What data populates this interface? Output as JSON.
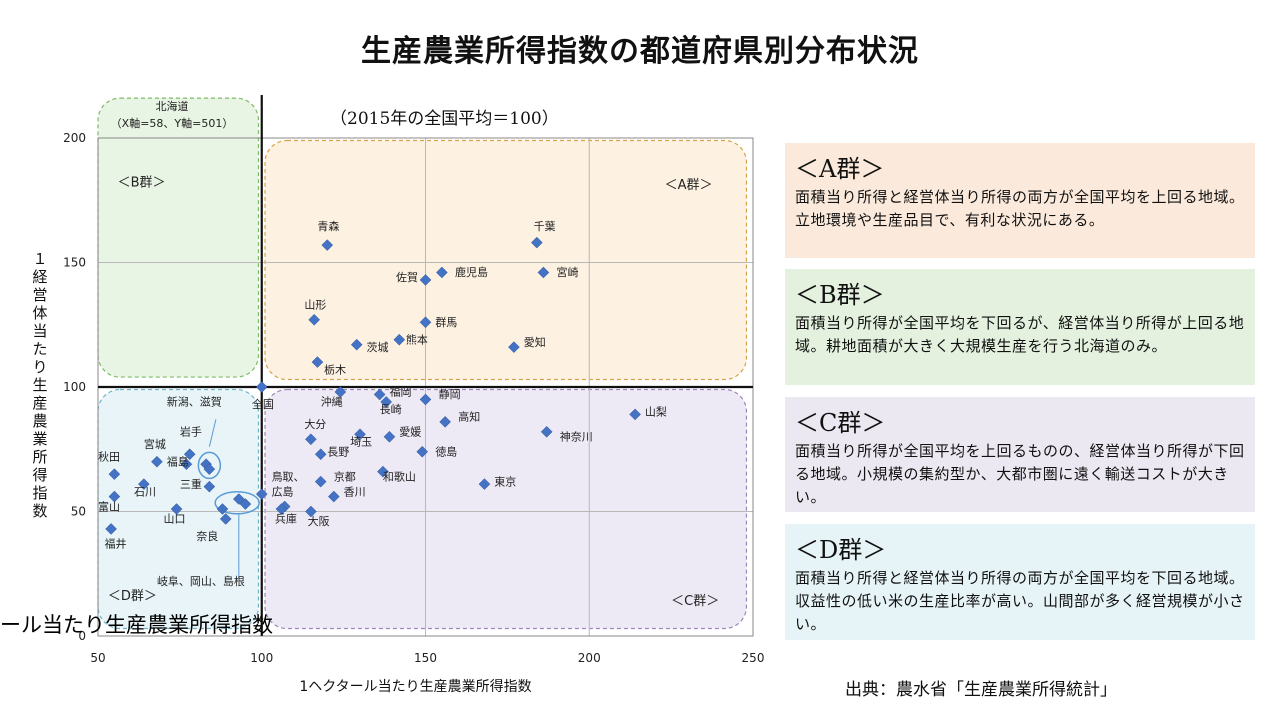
{
  "title": "生産農業所得指数の都道府県別分布状況",
  "subtitle": "（2015年の全国平均＝100）",
  "source": "出典：農水省「生産農業所得統計」",
  "overlap_text": "ール当たり生産農業所得指数",
  "chart_data": {
    "type": "scatter",
    "xlabel": "1ヘクタール当たり生産農業所得指数",
    "ylabel": "１経営体当たり生産農業所得指数",
    "xlim": [
      50,
      250
    ],
    "ylim": [
      0,
      200
    ],
    "xticks": [
      "50",
      "100",
      "150",
      "200",
      "250"
    ],
    "yticks": [
      "0",
      "50",
      "100",
      "150",
      "200"
    ],
    "grid": true,
    "reference_lines": {
      "x": 100,
      "y": 100
    },
    "marker_color": "#4472c4",
    "points": [
      {
        "label": "青森",
        "x": 120,
        "y": 157
      },
      {
        "label": "千葉",
        "x": 184,
        "y": 158
      },
      {
        "label": "宮崎",
        "x": 186,
        "y": 146
      },
      {
        "label": "鹿児島",
        "x": 155,
        "y": 146
      },
      {
        "label": "佐賀",
        "x": 150,
        "y": 143
      },
      {
        "label": "山形",
        "x": 116,
        "y": 127
      },
      {
        "label": "群馬",
        "x": 150,
        "y": 126
      },
      {
        "label": "熊本",
        "x": 142,
        "y": 119
      },
      {
        "label": "茨城",
        "x": 129,
        "y": 117
      },
      {
        "label": "愛知",
        "x": 177,
        "y": 116
      },
      {
        "label": "栃木",
        "x": 117,
        "y": 110
      },
      {
        "label": "全国",
        "x": 100,
        "y": 100
      },
      {
        "label": "沖縄",
        "x": 124,
        "y": 98
      },
      {
        "label": "福岡",
        "x": 136,
        "y": 97
      },
      {
        "label": "長崎",
        "x": 138,
        "y": 94
      },
      {
        "label": "静岡",
        "x": 150,
        "y": 95
      },
      {
        "label": "山梨",
        "x": 214,
        "y": 89
      },
      {
        "label": "高知",
        "x": 156,
        "y": 86
      },
      {
        "label": "神奈川",
        "x": 187,
        "y": 82
      },
      {
        "label": "大分",
        "x": 115,
        "y": 79
      },
      {
        "label": "埼玉",
        "x": 130,
        "y": 81
      },
      {
        "label": "愛媛",
        "x": 139,
        "y": 80
      },
      {
        "label": "長野",
        "x": 118,
        "y": 73
      },
      {
        "label": "徳島",
        "x": 149,
        "y": 74
      },
      {
        "label": "和歌山",
        "x": 137,
        "y": 66
      },
      {
        "label": "京都",
        "x": 118,
        "y": 62
      },
      {
        "label": "東京",
        "x": 168,
        "y": 61
      },
      {
        "label": "香川",
        "x": 122,
        "y": 56
      },
      {
        "label": "鳥取",
        "x": 100,
        "y": 57
      },
      {
        "label": "広島",
        "x": 107,
        "y": 52
      },
      {
        "label": "兵庫",
        "x": 106,
        "y": 51
      },
      {
        "label": "大阪",
        "x": 115,
        "y": 50
      },
      {
        "label": "岩手",
        "x": 78,
        "y": 73
      },
      {
        "label": "宮城",
        "x": 68,
        "y": 70
      },
      {
        "label": "福島",
        "x": 77,
        "y": 69
      },
      {
        "label": "新潟",
        "x": 83,
        "y": 69
      },
      {
        "label": "滋賀",
        "x": 84,
        "y": 67
      },
      {
        "label": "三重",
        "x": 84,
        "y": 60
      },
      {
        "label": "秋田",
        "x": 55,
        "y": 65
      },
      {
        "label": "石川",
        "x": 64,
        "y": 61
      },
      {
        "label": "富山",
        "x": 55,
        "y": 56
      },
      {
        "label": "山口",
        "x": 74,
        "y": 51
      },
      {
        "label": "岐阜",
        "x": 88,
        "y": 51
      },
      {
        "label": "岡山",
        "x": 93,
        "y": 55
      },
      {
        "label": "島根",
        "x": 95,
        "y": 53
      },
      {
        "label": "奈良",
        "x": 89,
        "y": 47
      },
      {
        "label": "福井",
        "x": 54,
        "y": 43
      }
    ],
    "chart_labels": [
      {
        "text": "青森",
        "x": 117,
        "y": 163
      },
      {
        "text": "千葉",
        "x": 183,
        "y": 163
      },
      {
        "text": "宮崎",
        "x": 190,
        "y": 144.5
      },
      {
        "text": "鹿児島",
        "x": 159,
        "y": 144.5
      },
      {
        "text": "佐賀",
        "x": 141,
        "y": 142.5
      },
      {
        "text": "山形",
        "x": 113,
        "y": 131.5
      },
      {
        "text": "群馬",
        "x": 153,
        "y": 124.5
      },
      {
        "text": "熊本",
        "x": 144,
        "y": 117.5
      },
      {
        "text": "茨城",
        "x": 132,
        "y": 114.5
      },
      {
        "text": "愛知",
        "x": 180,
        "y": 116.5
      },
      {
        "text": "栃木",
        "x": 119,
        "y": 105.5
      },
      {
        "text": "全国",
        "x": 97,
        "y": 91.5
      },
      {
        "text": "沖縄",
        "x": 118,
        "y": 92.5
      },
      {
        "text": "福岡",
        "x": 139,
        "y": 96.5
      },
      {
        "text": "長崎",
        "x": 136,
        "y": 89.5
      },
      {
        "text": "静岡",
        "x": 154,
        "y": 95.5
      },
      {
        "text": "山梨",
        "x": 217,
        "y": 88.5
      },
      {
        "text": "高知",
        "x": 160,
        "y": 86.5
      },
      {
        "text": "神奈川",
        "x": 191,
        "y": 78.5
      },
      {
        "text": "大分",
        "x": 113,
        "y": 83.5
      },
      {
        "text": "埼玉",
        "x": 127,
        "y": 76.5
      },
      {
        "text": "愛媛",
        "x": 142,
        "y": 80.5
      },
      {
        "text": "長野",
        "x": 120,
        "y": 72.5
      },
      {
        "text": "徳島",
        "x": 153,
        "y": 72.5
      },
      {
        "text": "和歌山",
        "x": 137,
        "y": 62.5
      },
      {
        "text": "京都",
        "x": 122,
        "y": 62.5
      },
      {
        "text": "東京",
        "x": 171,
        "y": 60.5
      },
      {
        "text": "香川",
        "x": 125,
        "y": 56.5
      },
      {
        "text": "鳥取、",
        "x": 103,
        "y": 62.5
      },
      {
        "text": "広島",
        "x": 103,
        "y": 56.5
      },
      {
        "text": "兵庫",
        "x": 104,
        "y": 45.5
      },
      {
        "text": "大阪",
        "x": 114,
        "y": 44.5
      },
      {
        "text": "新潟、滋賀",
        "x": 71,
        "y": 92.5
      },
      {
        "text": "岩手",
        "x": 75,
        "y": 80.5
      },
      {
        "text": "宮城",
        "x": 64,
        "y": 75.5
      },
      {
        "text": "福島",
        "x": 71,
        "y": 68.5
      },
      {
        "text": "三重",
        "x": 75,
        "y": 59.5
      },
      {
        "text": "秋田",
        "x": 50,
        "y": 70.5
      },
      {
        "text": "石川",
        "x": 61,
        "y": 56.5
      },
      {
        "text": "富山",
        "x": 50,
        "y": 50.5
      },
      {
        "text": "山口",
        "x": 70,
        "y": 45.5
      },
      {
        "text": "奈良",
        "x": 80,
        "y": 38.5
      },
      {
        "text": "福井",
        "x": 52,
        "y": 35.5
      },
      {
        "text": "岐阜、岡山、島根",
        "x": 68,
        "y": 20.5
      }
    ],
    "group_labels": [
      {
        "text": "＜A群＞",
        "x": 223,
        "y": 179.5
      },
      {
        "text": "＜B群＞",
        "x": 56,
        "y": 180.5
      },
      {
        "text": "＜C群＞",
        "x": 225,
        "y": 12.5
      },
      {
        "text": "＜D群＞",
        "x": 53,
        "y": 14.5
      }
    ],
    "regions": [
      {
        "name": "A群",
        "x0": 101,
        "x1": 248,
        "y0": 103,
        "y1": 199,
        "fill": "#fdf1e2",
        "stroke": "#d9a24a"
      },
      {
        "name": "B群",
        "x0": 50,
        "x1": 99,
        "y0": 104,
        "y1": 216,
        "fill": "#e9f5e4",
        "stroke": "#7dbb66"
      },
      {
        "name": "C群",
        "x0": 101,
        "x1": 248,
        "y0": 3,
        "y1": 99,
        "fill": "#eeeaf5",
        "stroke": "#9b87bb"
      },
      {
        "name": "D群",
        "x0": 50,
        "x1": 99,
        "y0": 3,
        "y1": 99,
        "fill": "#e8f4f8",
        "stroke": "#6eb4c8"
      }
    ],
    "annotation": {
      "title": "北海道",
      "text": "（X軸=58、Y軸=501）",
      "x": 58,
      "y": 501
    }
  },
  "groups": [
    {
      "heading": "＜A群＞",
      "text": "面積当り所得と経営体当り所得の両方が全国平均を上回る地域。立地環境や生産品目で、有利な状況にある。",
      "bg": "#fbeadb"
    },
    {
      "heading": "＜B群＞",
      "text": "面積当り所得が全国平均を下回るが、経営体当り所得が上回る地域。耕地面積が大きく大規模生産を行う北海道のみ。",
      "bg": "#e3f1de"
    },
    {
      "heading": "＜C群＞",
      "text": "面積当り所得が全国平均を上回るものの、経営体当り所得が下回る地域。小規模の集約型か、大都市圏に遠く輸送コストが大きい。",
      "bg": "#ebe8f1"
    },
    {
      "heading": "＜D群＞",
      "text": "面積当り所得と経営体当り所得の両方が全国平均を下回る地域。収益性の低い米の生産比率が高い。山間部が多く経営規模が小さい。",
      "bg": "#e6f3f7"
    }
  ]
}
